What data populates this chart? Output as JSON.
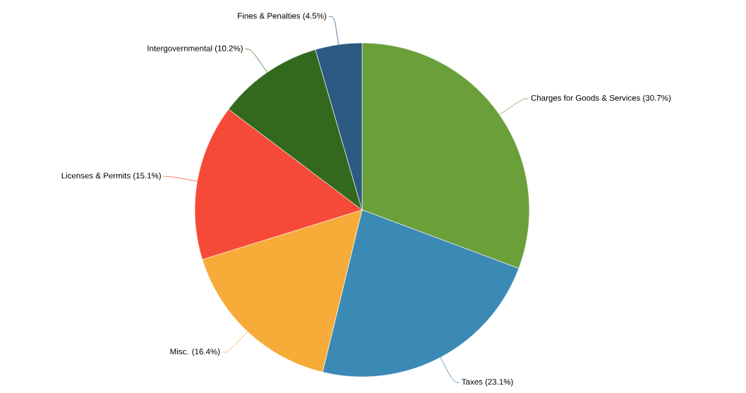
{
  "chart_data": {
    "type": "pie",
    "categories": [
      "Charges for Goods & Services (30.7%)",
      "Taxes (23.1%)",
      "Misc. (16.4%)",
      "Licenses & Permits (15.1%)",
      "Intergovernmental (10.2%)",
      "Fines & Penalties (4.5%)"
    ],
    "values": [
      30.7,
      23.1,
      16.4,
      15.1,
      10.2,
      4.5
    ],
    "colors": [
      "#6a9f3a",
      "#3b8ab5",
      "#f7ab38",
      "#f64a38",
      "#33691f",
      "#2c5a82"
    ]
  }
}
